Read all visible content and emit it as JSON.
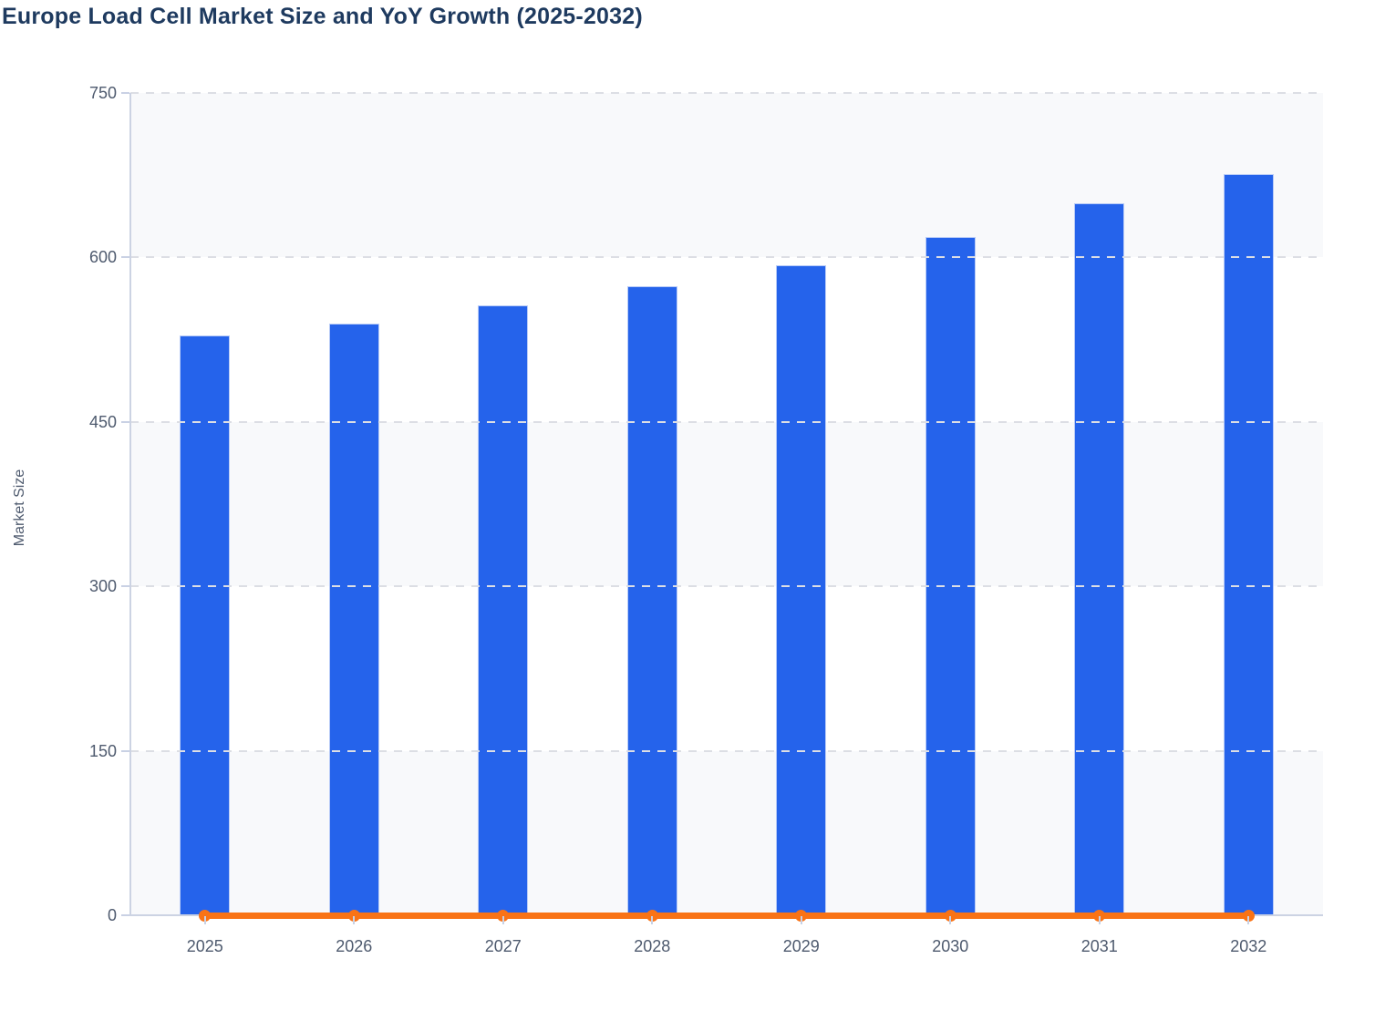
{
  "chart_data": {
    "type": "bar",
    "title": "Europe Load Cell Market Size and YoY Growth (2025-2032)",
    "categories": [
      "2025",
      "2026",
      "2027",
      "2028",
      "2029",
      "2030",
      "2031",
      "2032"
    ],
    "series": [
      {
        "name": "Market Size",
        "type": "bar",
        "values": [
          529,
          540,
          556,
          574,
          593,
          619,
          649,
          676
        ]
      },
      {
        "name": "YoY Growth",
        "type": "line",
        "values": [
          0,
          0,
          0,
          0,
          0,
          0,
          0,
          0
        ]
      }
    ],
    "xlabel": "",
    "ylabel": "Market Size",
    "ylim": [
      0,
      750
    ],
    "yticks": [
      0,
      150,
      300,
      450,
      600,
      750
    ],
    "grid": "horizontal-dashed",
    "legend": "none",
    "plot_background": "alternating-shaded-bands"
  },
  "colors": {
    "bar_fill": "#2563eb",
    "bar_border": "#b8cbf7",
    "line": "#f97316",
    "title_text": "#1e3a5f",
    "axis_text": "#4e5a6e",
    "grid_dash": "#dcdee4",
    "band_fill": "#f8f9fb",
    "axis_line": "#ccd3e3",
    "tick_mark": "#c9d1e4"
  }
}
